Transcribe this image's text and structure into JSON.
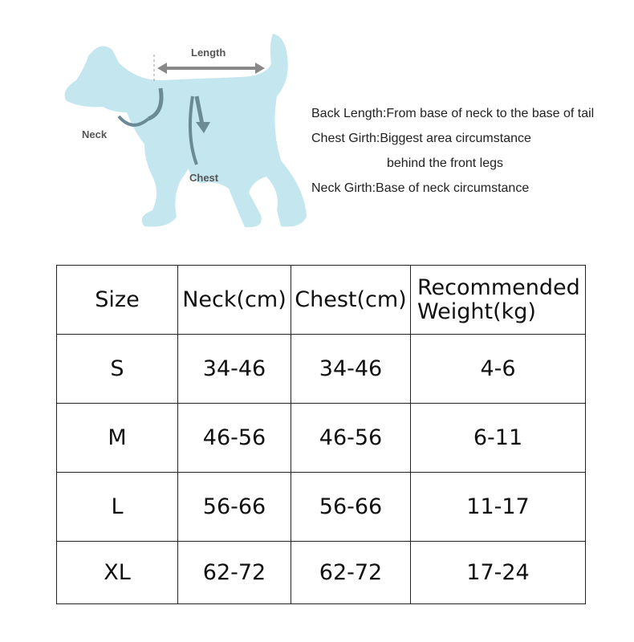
{
  "diagram": {
    "labels": {
      "length": "Length",
      "neck": "Neck",
      "chest": "Chest"
    },
    "notes": [
      "Back Length:From base of neck to the base of tail",
      "Chest Girth:Biggest area circumstance",
      "behind the front legs",
      "Neck Girth:Base of neck circumstance"
    ]
  },
  "table": {
    "header": [
      "Size",
      "Neck(cm)",
      "Chest(cm)",
      "Recommended Weight(kg)"
    ],
    "rows": [
      [
        "S",
        "34-46",
        "34-46",
        "4-6"
      ],
      [
        "M",
        "46-56",
        "46-56",
        "6-11"
      ],
      [
        "L",
        "56-66",
        "56-66",
        "11-17"
      ],
      [
        "XL",
        "62-72",
        "62-72",
        "17-24"
      ]
    ]
  }
}
